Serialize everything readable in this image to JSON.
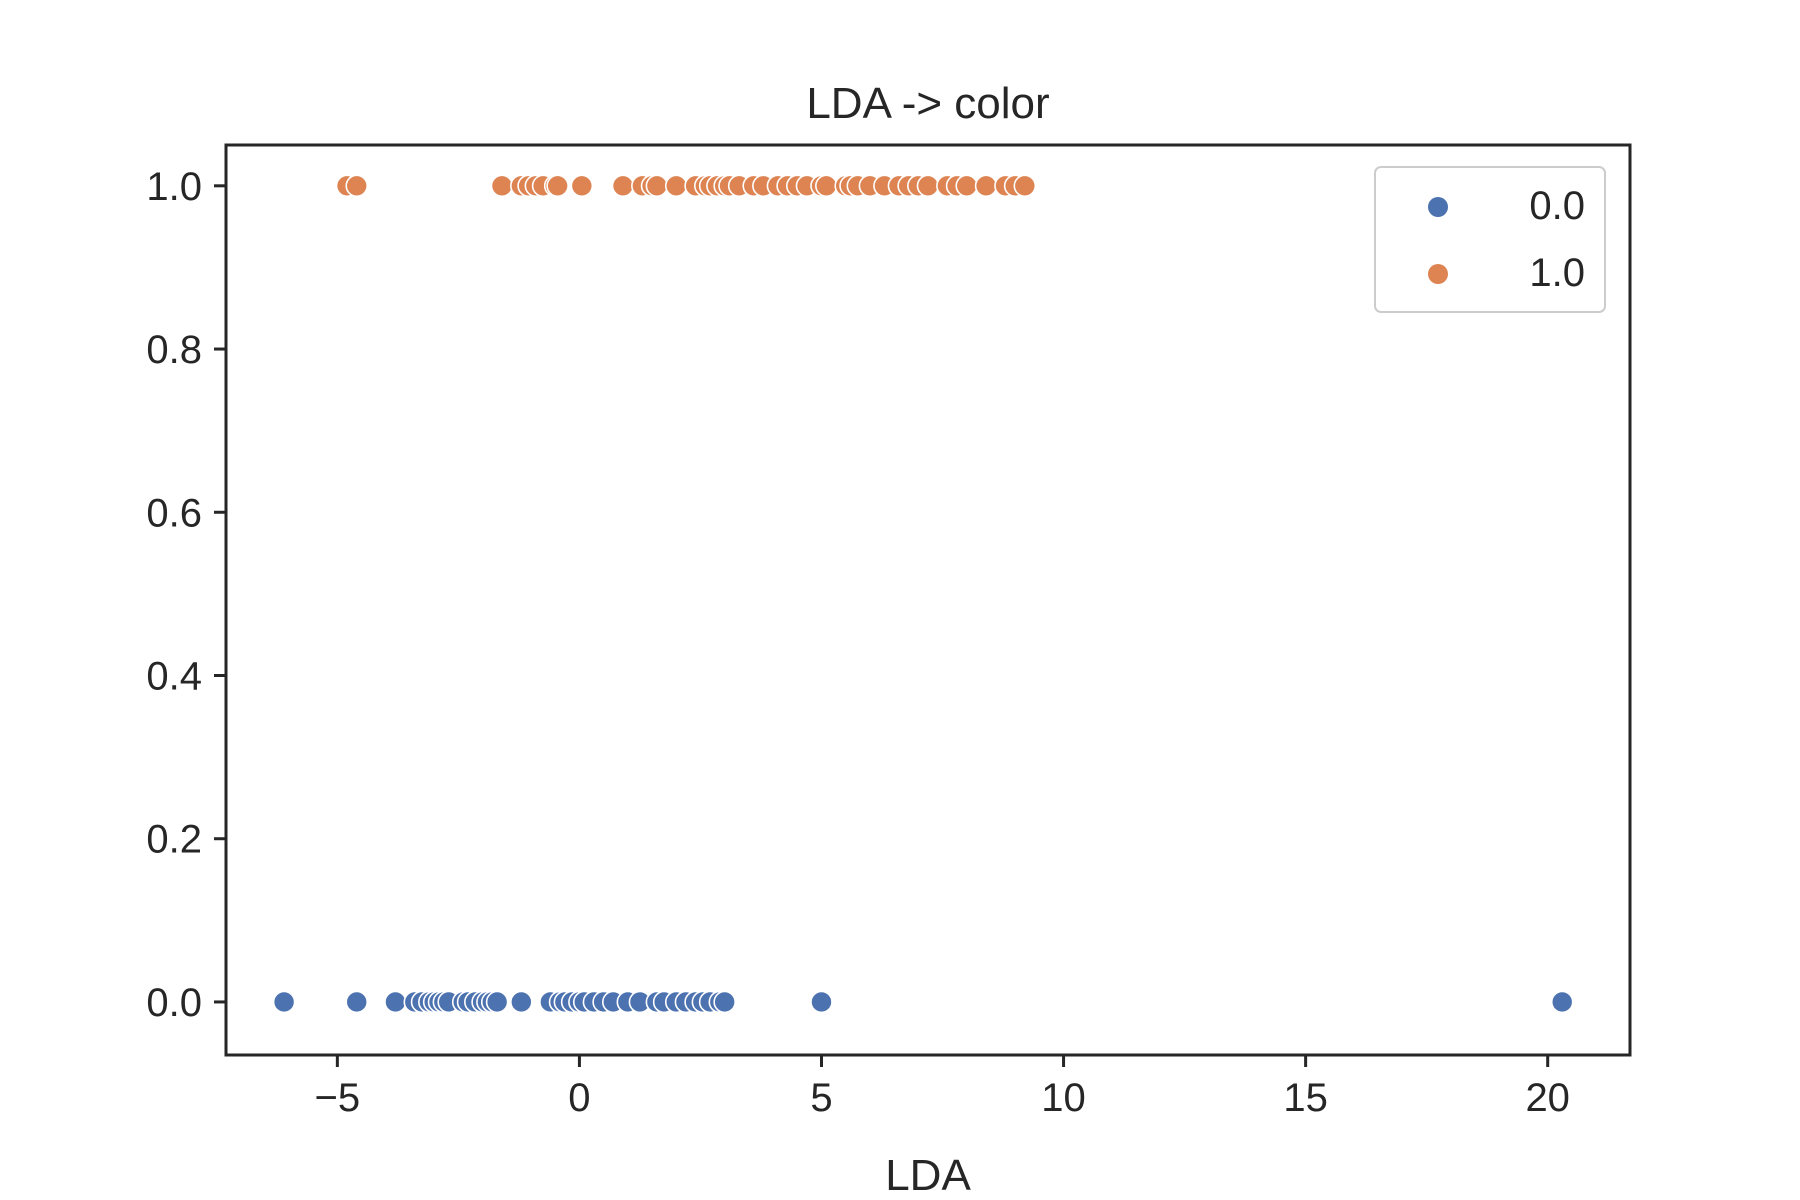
{
  "chart_data": {
    "type": "scatter",
    "title": "LDA -> color",
    "xlabel": "LDA",
    "ylabel": "",
    "xlim": [
      -7.3,
      21.7
    ],
    "ylim": [
      -0.065,
      1.05
    ],
    "xticks": [
      -5,
      0,
      5,
      10,
      15,
      20
    ],
    "xtick_labels": [
      "−5",
      "0",
      "5",
      "10",
      "15",
      "20"
    ],
    "yticks": [
      0.0,
      0.2,
      0.4,
      0.6,
      0.8,
      1.0
    ],
    "ytick_labels": [
      "0.0",
      "0.2",
      "0.4",
      "0.6",
      "0.8",
      "1.0"
    ],
    "grid": false,
    "legend_position": "top-right",
    "series": [
      {
        "name": "0.0",
        "color": "#4c72b0",
        "points": [
          {
            "x": -6.1,
            "y": 0
          },
          {
            "x": -4.6,
            "y": 0
          },
          {
            "x": -3.8,
            "y": 0
          },
          {
            "x": -3.4,
            "y": 0
          },
          {
            "x": -3.25,
            "y": 0
          },
          {
            "x": -3.1,
            "y": 0
          },
          {
            "x": -3.0,
            "y": 0
          },
          {
            "x": -2.9,
            "y": 0
          },
          {
            "x": -2.8,
            "y": 0
          },
          {
            "x": -2.7,
            "y": 0
          },
          {
            "x": -2.4,
            "y": 0
          },
          {
            "x": -2.3,
            "y": 0
          },
          {
            "x": -2.15,
            "y": 0
          },
          {
            "x": -2.0,
            "y": 0
          },
          {
            "x": -1.9,
            "y": 0
          },
          {
            "x": -1.8,
            "y": 0
          },
          {
            "x": -1.7,
            "y": 0
          },
          {
            "x": -1.2,
            "y": 0
          },
          {
            "x": -0.6,
            "y": 0
          },
          {
            "x": -0.4,
            "y": 0
          },
          {
            "x": -0.3,
            "y": 0
          },
          {
            "x": -0.15,
            "y": 0
          },
          {
            "x": 0.0,
            "y": 0
          },
          {
            "x": 0.1,
            "y": 0
          },
          {
            "x": 0.3,
            "y": 0
          },
          {
            "x": 0.5,
            "y": 0
          },
          {
            "x": 0.7,
            "y": 0
          },
          {
            "x": 1.0,
            "y": 0
          },
          {
            "x": 1.25,
            "y": 0
          },
          {
            "x": 1.6,
            "y": 0
          },
          {
            "x": 1.75,
            "y": 0
          },
          {
            "x": 2.0,
            "y": 0
          },
          {
            "x": 2.2,
            "y": 0
          },
          {
            "x": 2.4,
            "y": 0
          },
          {
            "x": 2.55,
            "y": 0
          },
          {
            "x": 2.7,
            "y": 0
          },
          {
            "x": 2.9,
            "y": 0
          },
          {
            "x": 3.0,
            "y": 0
          },
          {
            "x": 5.0,
            "y": 0
          },
          {
            "x": 20.3,
            "y": 0
          }
        ]
      },
      {
        "name": "1.0",
        "color": "#dd8452",
        "points": [
          {
            "x": -4.8,
            "y": 1
          },
          {
            "x": -4.6,
            "y": 1
          },
          {
            "x": -1.6,
            "y": 1
          },
          {
            "x": -1.2,
            "y": 1
          },
          {
            "x": -1.05,
            "y": 1
          },
          {
            "x": -0.9,
            "y": 1
          },
          {
            "x": -0.75,
            "y": 1
          },
          {
            "x": -0.5,
            "y": 1
          },
          {
            "x": -0.45,
            "y": 1
          },
          {
            "x": 0.05,
            "y": 1
          },
          {
            "x": 0.9,
            "y": 1
          },
          {
            "x": 1.3,
            "y": 1
          },
          {
            "x": 1.5,
            "y": 1
          },
          {
            "x": 1.6,
            "y": 1
          },
          {
            "x": 2.0,
            "y": 1
          },
          {
            "x": 2.4,
            "y": 1
          },
          {
            "x": 2.6,
            "y": 1
          },
          {
            "x": 2.7,
            "y": 1
          },
          {
            "x": 2.85,
            "y": 1
          },
          {
            "x": 3.0,
            "y": 1
          },
          {
            "x": 3.1,
            "y": 1
          },
          {
            "x": 3.3,
            "y": 1
          },
          {
            "x": 3.6,
            "y": 1
          },
          {
            "x": 3.8,
            "y": 1
          },
          {
            "x": 4.1,
            "y": 1
          },
          {
            "x": 4.3,
            "y": 1
          },
          {
            "x": 4.5,
            "y": 1
          },
          {
            "x": 4.7,
            "y": 1
          },
          {
            "x": 5.0,
            "y": 1
          },
          {
            "x": 5.1,
            "y": 1
          },
          {
            "x": 5.5,
            "y": 1
          },
          {
            "x": 5.6,
            "y": 1
          },
          {
            "x": 5.75,
            "y": 1
          },
          {
            "x": 6.0,
            "y": 1
          },
          {
            "x": 6.3,
            "y": 1
          },
          {
            "x": 6.6,
            "y": 1
          },
          {
            "x": 6.8,
            "y": 1
          },
          {
            "x": 7.0,
            "y": 1
          },
          {
            "x": 7.2,
            "y": 1
          },
          {
            "x": 7.6,
            "y": 1
          },
          {
            "x": 7.8,
            "y": 1
          },
          {
            "x": 8.0,
            "y": 1
          },
          {
            "x": 8.4,
            "y": 1
          },
          {
            "x": 8.8,
            "y": 1
          },
          {
            "x": 9.0,
            "y": 1
          },
          {
            "x": 9.2,
            "y": 1
          }
        ]
      }
    ]
  }
}
